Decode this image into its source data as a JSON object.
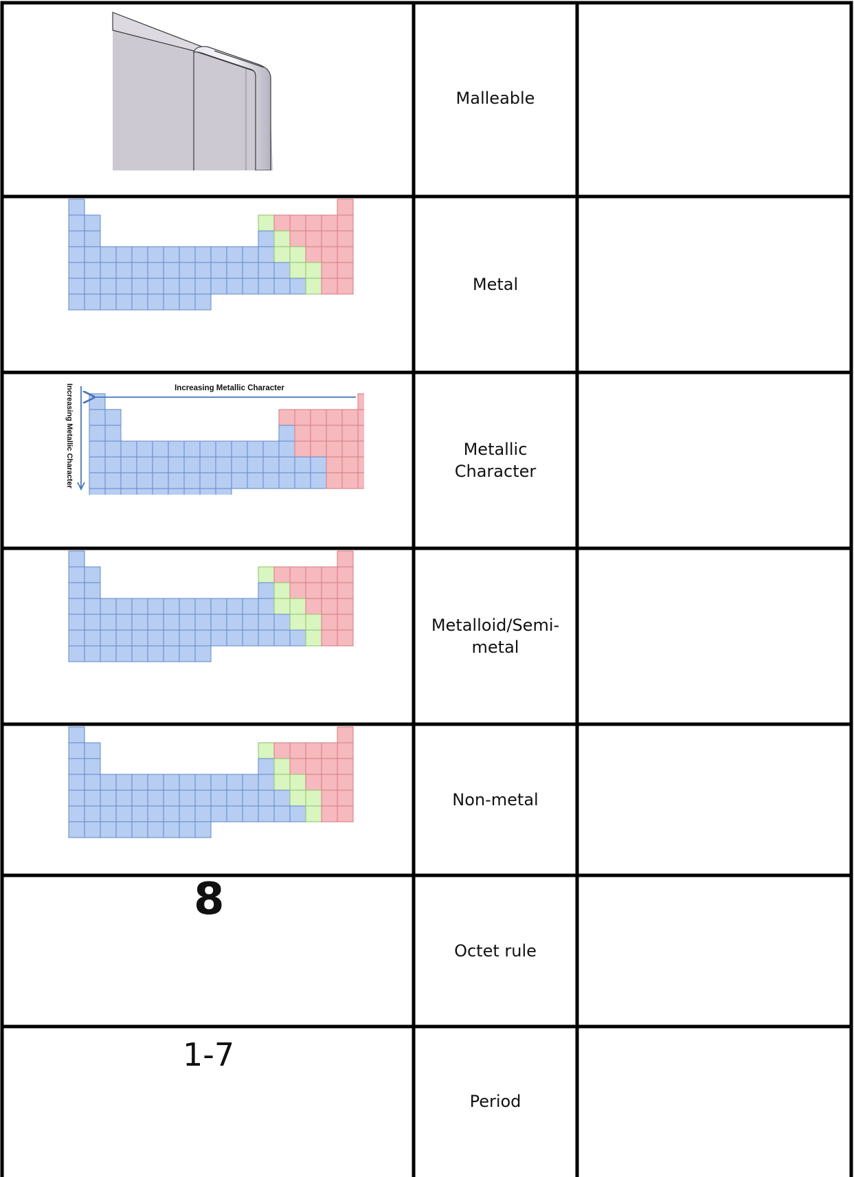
{
  "table": {
    "columns": [
      "image",
      "term",
      "definition"
    ],
    "rows": [
      {
        "term": "Malleable",
        "image": "bent-metal-sheet-illustration",
        "definition": ""
      },
      {
        "term": "Metal",
        "image": "periodic-table-metal-metalloid-nonmetal",
        "definition": ""
      },
      {
        "term": "Metallic Character",
        "image": "periodic-table-metallic-character-trend",
        "definition": ""
      },
      {
        "term": "Metalloid/Semi-metal",
        "image": "periodic-table-metal-metalloid-nonmetal",
        "definition": ""
      },
      {
        "term": "Non-metal",
        "image": "periodic-table-metal-metalloid-nonmetal",
        "definition": ""
      },
      {
        "term": "Octet rule",
        "image_text": "8",
        "definition": ""
      },
      {
        "term": "Period",
        "image_text": "1-7",
        "definition": ""
      }
    ]
  },
  "trend_labels": {
    "horizontal": "Increasing Metallic Character",
    "vertical": "Increasing Metallic Character"
  },
  "colors": {
    "metal": "#b7cdf2",
    "metalloid": "#d9f5c0",
    "nonmetal": "#f6b9bd",
    "grid_line": "#000000"
  }
}
